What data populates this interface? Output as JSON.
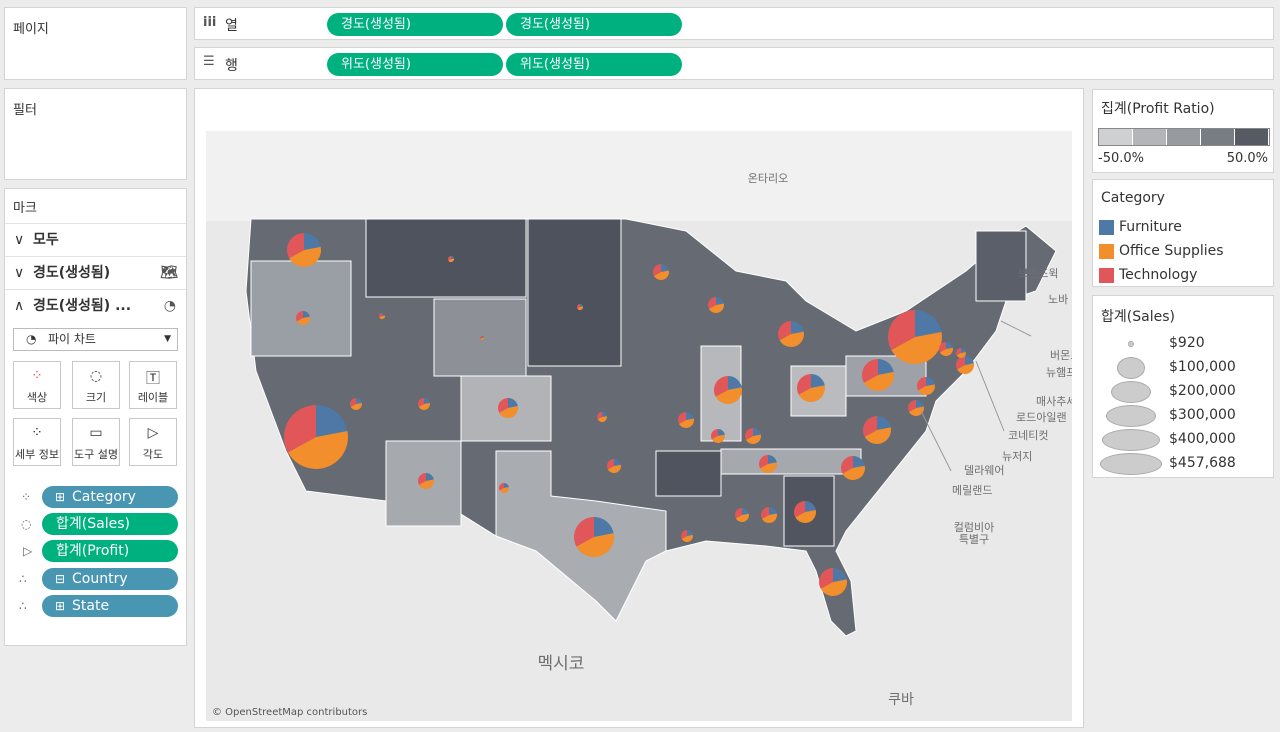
{
  "pages": {
    "title": "페이지"
  },
  "filters": {
    "title": "필터"
  },
  "shelves": {
    "columns": {
      "label": "열",
      "pills": [
        "경도(생성됨)",
        "경도(생성됨)"
      ],
      "color": "#00b180"
    },
    "rows": {
      "label": "행",
      "pills": [
        "위도(생성됨)",
        "위도(생성됨)"
      ],
      "color": "#00b180"
    }
  },
  "marks": {
    "title": "마크",
    "cards": [
      "모두",
      "경도(생성됨)",
      "경도(생성됨) ..."
    ],
    "mark_type": "파이 차트",
    "buttons": [
      "색상",
      "크기",
      "레이블",
      "세부 정보",
      "도구 설명",
      "각도"
    ],
    "fields": [
      {
        "label": "Category",
        "color": "#4996b2"
      },
      {
        "label": "합계(Sales)",
        "color": "#00b180"
      },
      {
        "label": "합계(Profit)",
        "color": "#00b180"
      },
      {
        "label": "Country",
        "color": "#4996b2"
      },
      {
        "label": "State",
        "color": "#4996b2"
      }
    ]
  },
  "map": {
    "labels": [
      "온타리오",
      "멕시코",
      "쿠바",
      "버몬트",
      "뉴햄프셔",
      "매사추세",
      "로드아일랜",
      "코네티컷",
      "뉴저지",
      "델라웨어",
      "메릴랜드",
      "컬럼비아",
      "특별구",
      "브런즈윅",
      "노바"
    ],
    "attribution": "© OpenStreetMap contributors"
  },
  "legends": {
    "profit_ratio": {
      "title": "집계(Profit Ratio)",
      "min": "-50.0%",
      "max": "50.0%",
      "colors": [
        "#cfd0d2",
        "#b3b5b8",
        "#979a9f",
        "#787c83",
        "#565a63"
      ]
    },
    "category": {
      "title": "Category",
      "items": [
        {
          "name": "Furniture",
          "color": "#4e79a7"
        },
        {
          "name": "Office Supplies",
          "color": "#f28e2b"
        },
        {
          "name": "Technology",
          "color": "#e15759"
        }
      ]
    },
    "sales": {
      "title": "합계(Sales)",
      "items": [
        "$920",
        "$100,000",
        "$200,000",
        "$300,000",
        "$400,000",
        "$457,688"
      ]
    }
  }
}
